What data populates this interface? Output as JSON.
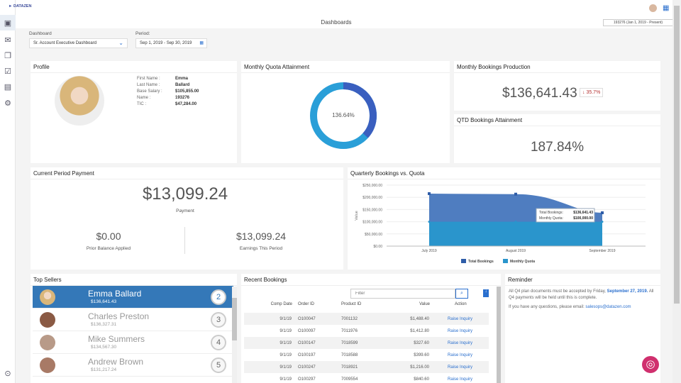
{
  "app": {
    "logo": "DATAZEN",
    "title": "Dashboards",
    "user_context": "193276 (Jan 1, 2019 - Present)"
  },
  "sidebar": {
    "items": [
      "dashboard-icon",
      "mail-icon",
      "documents-icon",
      "checklist-icon",
      "report-icon",
      "search-settings-icon",
      "expand-icon"
    ]
  },
  "filters": {
    "dashboard_label": "Dashboard",
    "dashboard_value": "Sr. Account Executive Dashboard",
    "period_label": "Period:",
    "period_value": "Sep 1, 2019 - Sep 30, 2019"
  },
  "profile": {
    "title": "Profile",
    "fields": [
      {
        "label": "First Name :",
        "value": "Emma"
      },
      {
        "label": "Last Name :",
        "value": "Ballard"
      },
      {
        "label": "Base Salary :",
        "value": "$105,855.00"
      },
      {
        "label": "Name :",
        "value": "193276"
      },
      {
        "label": "TIC :",
        "value": "$47,284.00"
      }
    ]
  },
  "quota": {
    "title": "Monthly Quota Attainment",
    "value": "136.64%",
    "percent": 136.64,
    "colors": {
      "primary": "#2a9fd8",
      "overflow": "#3a5fbf"
    }
  },
  "bookings": {
    "title": "Monthly Bookings Production",
    "value": "$136,641.43",
    "delta": "35.7%",
    "delta_color": "#b53434"
  },
  "qtd": {
    "title": "QTD Bookings Attainment",
    "value": "187.84%"
  },
  "payment": {
    "title": "Current Period Payment",
    "total": "$13,099.24",
    "total_label": "Payment",
    "prior": "$0.00",
    "prior_label": "Prior Balance Applied",
    "earnings": "$13,099.24",
    "earnings_label": "Earnings This Period"
  },
  "chart_data": {
    "type": "area",
    "title": "Quarterly Bookings vs. Quota",
    "ylabel": "Value",
    "categories": [
      "July 2019",
      "August 2019",
      "September 2019"
    ],
    "ylim": [
      0,
      250000
    ],
    "yticks": [
      "$0.00",
      "$50,000.00",
      "$100,000.00",
      "$150,000.00",
      "$200,000.00",
      "$250,000.00"
    ],
    "grid": true,
    "legend": "bottom",
    "series": [
      {
        "name": "Total Bookings",
        "values": [
          215000,
          213000,
          136641.43
        ],
        "color": "#4f7dc0"
      },
      {
        "name": "Monthly Quota",
        "values": [
          100000,
          100000,
          100000
        ],
        "color": "#2a95cc"
      }
    ],
    "tooltip": {
      "bookings_label": "Total Bookings:",
      "bookings_value": "$136,641.43",
      "quota_label": "Monthly Quota:",
      "quota_value": "$100,000.00"
    }
  },
  "sellers": {
    "title": "Top Sellers",
    "items": [
      {
        "name": "Emma Ballard",
        "amount": "$136,641.43",
        "rank": "2"
      },
      {
        "name": "Charles Preston",
        "amount": "$136,327.31",
        "rank": "3"
      },
      {
        "name": "Mike Summers",
        "amount": "$134,567.30",
        "rank": "4"
      },
      {
        "name": "Andrew Brown",
        "amount": "$131,217.24",
        "rank": "5"
      }
    ]
  },
  "recent": {
    "title": "Recent Bookings",
    "filter_placeholder": "Filter",
    "columns": [
      "Comp Date",
      "Order ID",
      "Product ID",
      "Value",
      "Action"
    ],
    "rows": [
      [
        "9/1/19",
        "O100047",
        "7001132",
        "$1,488.40",
        "Raise Inquiry"
      ],
      [
        "9/1/19",
        "O100097",
        "7011976",
        "$1,412.80",
        "Raise Inquiry"
      ],
      [
        "9/1/19",
        "O100147",
        "7018599",
        "$327.60",
        "Raise Inquiry"
      ],
      [
        "9/1/19",
        "O100197",
        "7018588",
        "$399.60",
        "Raise Inquiry"
      ],
      [
        "9/1/19",
        "O100247",
        "7018921",
        "$1,216.00",
        "Raise Inquiry"
      ],
      [
        "9/1/19",
        "O100297",
        "7009554",
        "$840.60",
        "Raise Inquiry"
      ]
    ]
  },
  "reminder": {
    "title": "Reminder",
    "text1": "All Q4 plan documents must be accepted by Friday,",
    "date": "September 27, 2019.",
    "text2": "All Q4 payments will be held until this is complete.",
    "text3": "If you have any questions, please email:",
    "email": "salesops@datazen.com"
  }
}
